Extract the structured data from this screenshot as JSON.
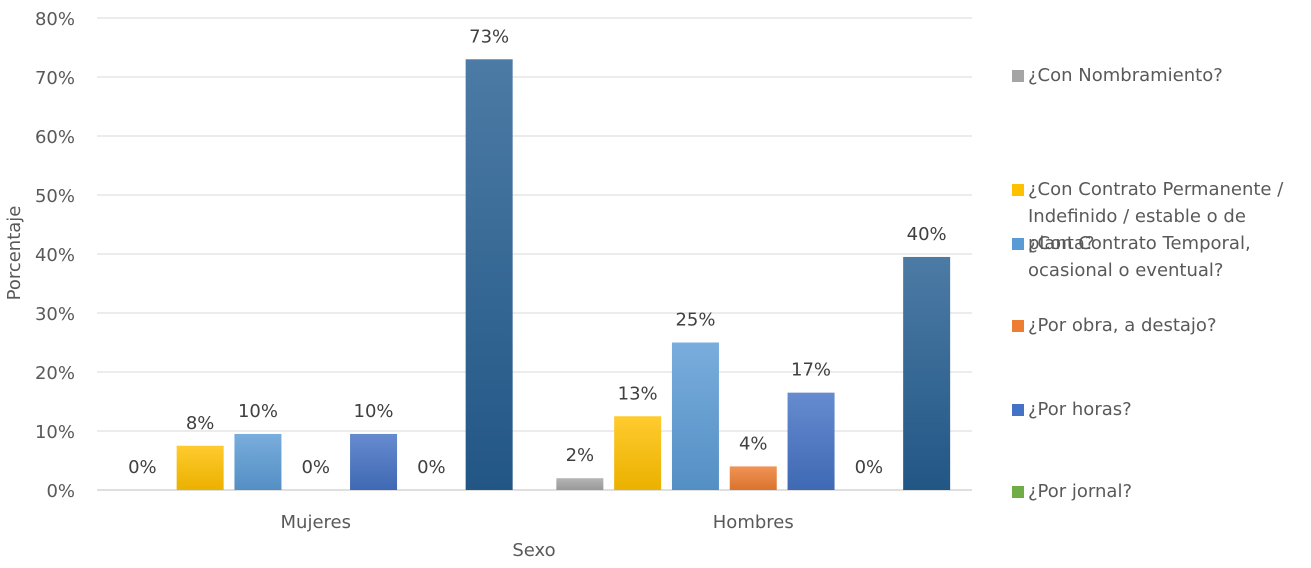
{
  "chart_data": {
    "type": "bar",
    "title": "",
    "xlabel": "Sexo",
    "ylabel": "Porcentaje",
    "ylim": [
      0,
      80
    ],
    "yticks": [
      "0%",
      "10%",
      "20%",
      "30%",
      "40%",
      "50%",
      "60%",
      "70%",
      "80%"
    ],
    "grid": true,
    "legend_position": "right",
    "categories": [
      "Mujeres",
      "Hombres"
    ],
    "series": [
      {
        "name": "¿Con Nombramiento?",
        "color": "#a5a5a5",
        "values": [
          0,
          2
        ],
        "labels": [
          "0%",
          "2%"
        ]
      },
      {
        "name": "¿Con Contrato Permanente / Indefinido / estable o de planta?",
        "color": "#ffc000",
        "values": [
          7.5,
          12.5
        ],
        "labels": [
          "8%",
          "13%"
        ]
      },
      {
        "name": "¿Con Contrato Temporal, ocasional o eventual?",
        "color": "#5b9bd5",
        "values": [
          9.5,
          25
        ],
        "labels": [
          "10%",
          "25%"
        ]
      },
      {
        "name": "¿Por obra, a destajo?",
        "color": "#ed7d31",
        "values": [
          0,
          4
        ],
        "labels": [
          "0%",
          "4%"
        ]
      },
      {
        "name": "¿Por horas?",
        "color": "#4472c4",
        "values": [
          9.5,
          16.5
        ],
        "labels": [
          "10%",
          "17%"
        ]
      },
      {
        "name": "¿Por jornal?",
        "color": "#70ad47",
        "values": [
          0,
          0
        ],
        "labels": [
          "0%",
          "0%"
        ]
      },
      {
        "name": "",
        "color": "#255e91",
        "values": [
          73,
          39.5
        ],
        "labels": [
          "73%",
          "40%"
        ]
      }
    ]
  }
}
